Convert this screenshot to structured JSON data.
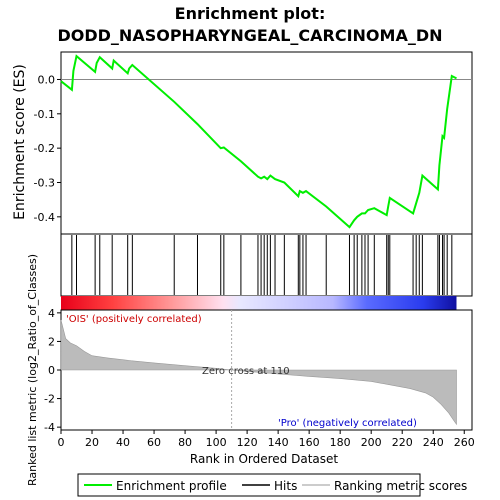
{
  "chart_data": {
    "type": "line",
    "title_line1": "Enrichment plot:",
    "title_line2": "DODD_NASOPHARYNGEAL_CARCINOMA_DN",
    "es_ylabel": "Enrichment score (ES)",
    "metric_ylabel": "Ranked list metric (log2_Ratio_of_Classes)",
    "xlabel": "Rank in Ordered Dataset",
    "xlim": [
      0,
      265
    ],
    "es_ylim": [
      -0.45,
      0.08
    ],
    "metric_ylim": [
      -4.2,
      4.2
    ],
    "x_ticks": [
      0,
      20,
      40,
      60,
      80,
      100,
      120,
      140,
      160,
      180,
      200,
      220,
      240,
      260
    ],
    "x_tick_labels": [
      "0",
      "20",
      "40",
      "60",
      "80",
      "100",
      "120",
      "140",
      "160",
      "180",
      "200",
      "220",
      "240",
      "260"
    ],
    "es_ticks": [
      0.0,
      -0.1,
      -0.2,
      -0.3,
      -0.4
    ],
    "es_tick_labels": [
      "0.0",
      "-0.1",
      "-0.2",
      "-0.3",
      "-0.4"
    ],
    "metric_ticks": [
      4,
      2,
      0,
      -2,
      -4
    ],
    "metric_tick_labels": [
      "4",
      "2",
      "0",
      "-2",
      "-4"
    ],
    "positive_label": "'OIS' (positively correlated)",
    "negative_label": "'Pro' (negatively correlated)",
    "zero_cross_label": "Zero cross at 110",
    "zero_cross": 110,
    "n_genes": 255,
    "colors": {
      "es_line": "#00ee00",
      "hits": "#000000",
      "metric_fill": "#bbbbbb",
      "positive_text": "#cc0000",
      "negative_text": "#0000cc",
      "zero_line": "#aaaaaa"
    },
    "es_curve": {
      "x": [
        0,
        7,
        8,
        10,
        22,
        23,
        25,
        33,
        34,
        43,
        44,
        46,
        73,
        88,
        103,
        105,
        116,
        127,
        129,
        131,
        133,
        135,
        138,
        144,
        153,
        154,
        156,
        158,
        171,
        186,
        189,
        191,
        194,
        196,
        198,
        202,
        210,
        211,
        212,
        227,
        229,
        231,
        233,
        243,
        244,
        246,
        247,
        249,
        252,
        255
      ],
      "y": [
        -0.005,
        -0.03,
        0.025,
        0.068,
        0.022,
        0.048,
        0.065,
        0.032,
        0.055,
        0.018,
        0.032,
        0.042,
        -0.065,
        -0.13,
        -0.2,
        -0.198,
        -0.238,
        -0.283,
        -0.288,
        -0.283,
        -0.29,
        -0.28,
        -0.29,
        -0.3,
        -0.34,
        -0.325,
        -0.33,
        -0.325,
        -0.37,
        -0.43,
        -0.41,
        -0.4,
        -0.39,
        -0.39,
        -0.38,
        -0.375,
        -0.395,
        -0.37,
        -0.345,
        -0.39,
        -0.36,
        -0.33,
        -0.28,
        -0.32,
        -0.25,
        -0.165,
        -0.17,
        -0.085,
        0.01,
        0.003
      ]
    },
    "hits": [
      7,
      10,
      22,
      25,
      33,
      43,
      46,
      73,
      88,
      103,
      105,
      116,
      127,
      129,
      131,
      133,
      135,
      138,
      144,
      153,
      154,
      156,
      158,
      171,
      186,
      189,
      191,
      194,
      196,
      198,
      202,
      210,
      211,
      212,
      227,
      229,
      231,
      233,
      243,
      244,
      246,
      247,
      249,
      252
    ],
    "metric_profile": {
      "rank": [
        0,
        3,
        6,
        10,
        15,
        20,
        30,
        45,
        60,
        80,
        100,
        110,
        120,
        140,
        160,
        180,
        200,
        215,
        225,
        235,
        240,
        245,
        250,
        253,
        255
      ],
      "value": [
        3.5,
        2.2,
        1.9,
        1.7,
        1.3,
        1.0,
        0.85,
        0.65,
        0.5,
        0.3,
        0.12,
        0.0,
        -0.1,
        -0.28,
        -0.45,
        -0.6,
        -0.8,
        -1.1,
        -1.3,
        -1.6,
        -1.9,
        -2.4,
        -3.0,
        -3.5,
        -3.8
      ]
    },
    "legend": [
      {
        "label": "Enrichment profile",
        "kind": "line"
      },
      {
        "label": "Hits",
        "kind": "hit"
      },
      {
        "label": "Ranking metric scores",
        "kind": "metric"
      }
    ]
  }
}
